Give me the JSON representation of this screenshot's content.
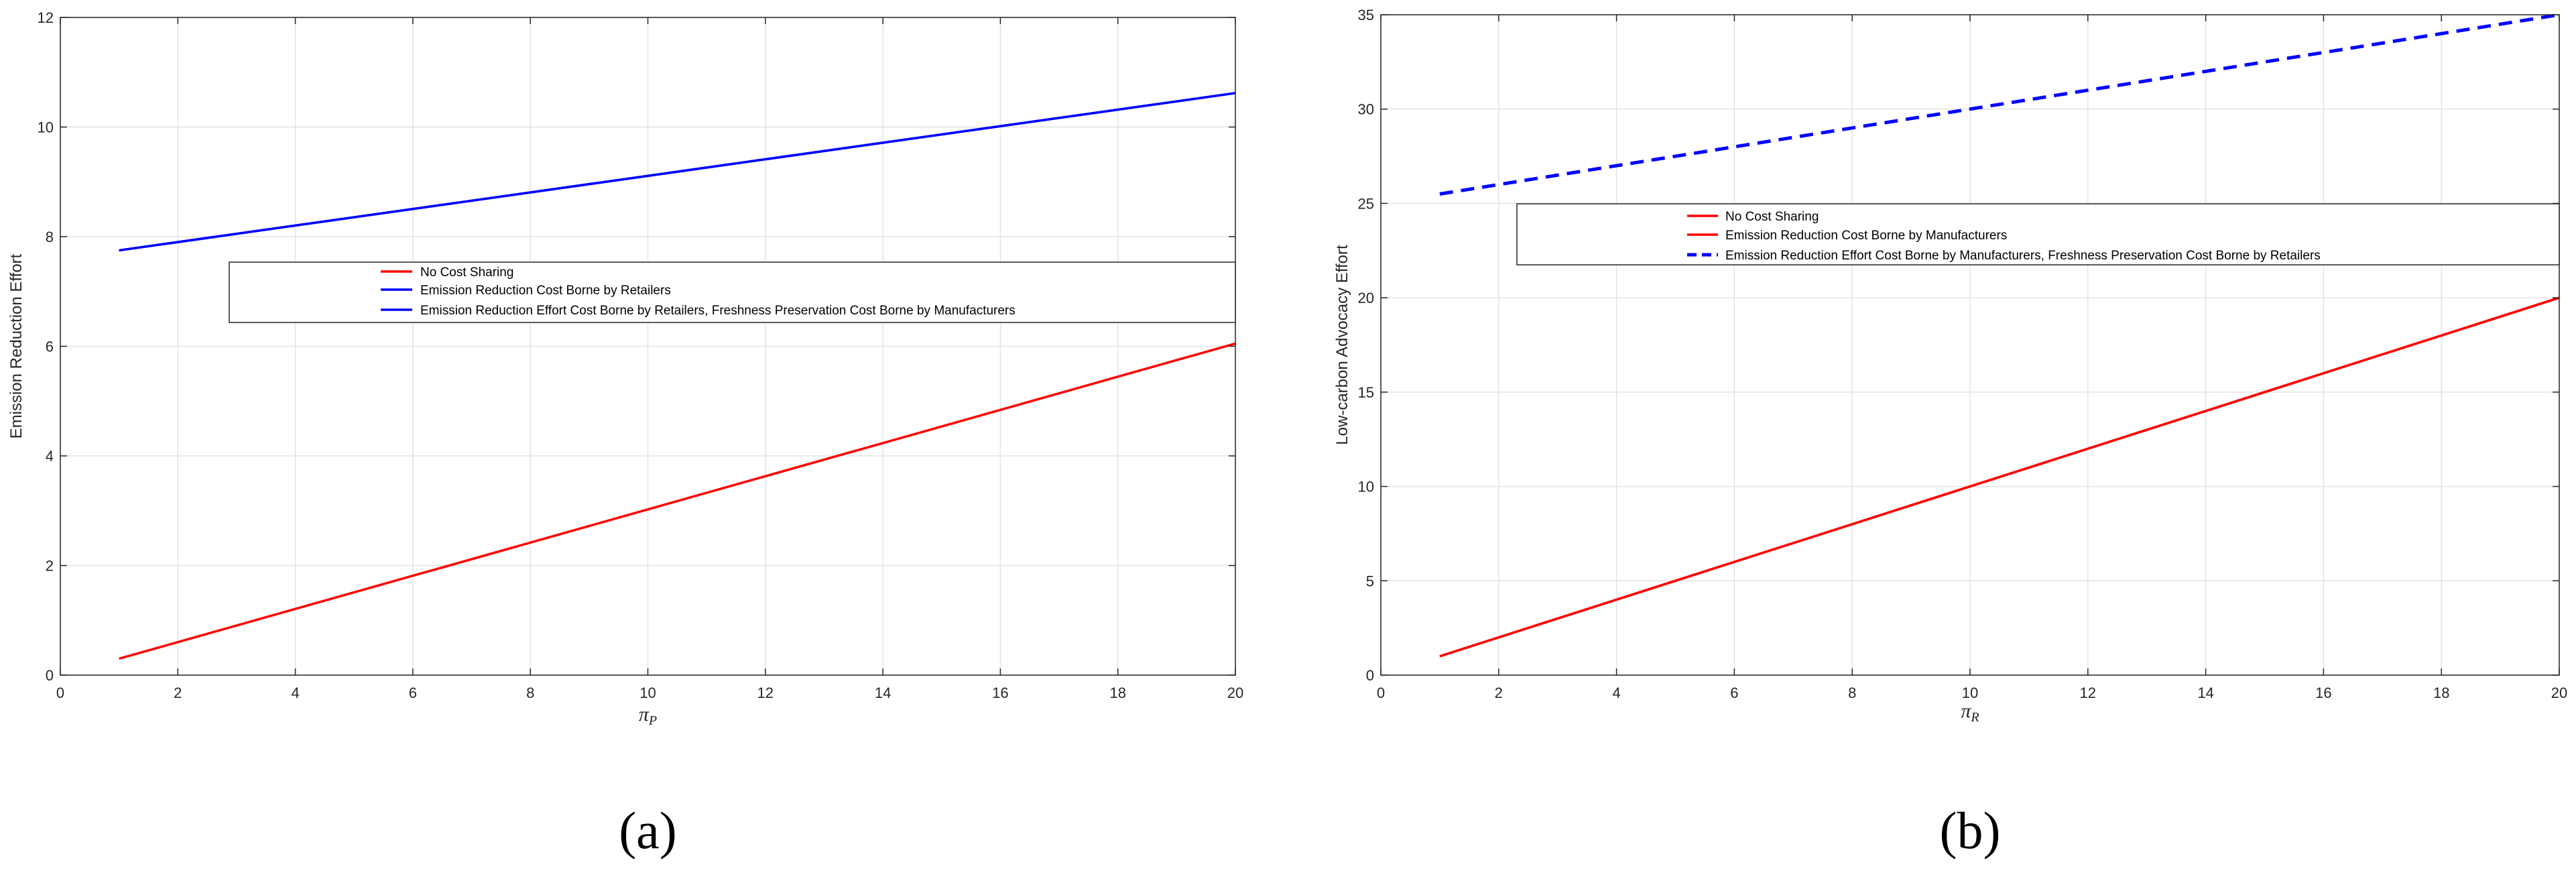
{
  "chart_data": [
    {
      "type": "line",
      "caption": "(a)",
      "ylabel": "Emission Reduction Effort",
      "xlabel": "πP",
      "xlabel_symbol": "π",
      "xlabel_subscript": "P",
      "xlim": [
        0,
        20
      ],
      "ylim": [
        0,
        12
      ],
      "xticks": [
        0,
        2,
        4,
        6,
        8,
        10,
        12,
        14,
        16,
        18,
        20
      ],
      "yticks": [
        0,
        2,
        4,
        6,
        8,
        10,
        12
      ],
      "grid": true,
      "legend_position": "center",
      "series": [
        {
          "name": "No Cost Sharing",
          "color": "#ff0000",
          "dash": "solid",
          "x": [
            1,
            20
          ],
          "y": [
            0.3,
            6.05
          ]
        },
        {
          "name": "Emission Reduction Cost Borne by Retailers",
          "color": "#0000ff",
          "dash": "solid",
          "x": [
            1,
            20
          ],
          "y": [
            7.75,
            10.62
          ]
        },
        {
          "name": "Emission Reduction Effort Cost Borne by Retailers, Freshness Preservation Cost Borne by Manufacturers",
          "color": "#0000ff",
          "dash": "solid",
          "x": [
            1,
            20
          ],
          "y": [
            7.75,
            10.62
          ]
        }
      ]
    },
    {
      "type": "line",
      "caption": "(b)",
      "ylabel": "Low-carbon Advocacy Effort",
      "xlabel": "πR",
      "xlabel_symbol": "π",
      "xlabel_subscript": "R",
      "xlim": [
        0,
        20
      ],
      "ylim": [
        0,
        35
      ],
      "xticks": [
        0,
        2,
        4,
        6,
        8,
        10,
        12,
        14,
        16,
        18,
        20
      ],
      "yticks": [
        0,
        5,
        10,
        15,
        20,
        25,
        30,
        35
      ],
      "grid": true,
      "legend_position": "center",
      "series": [
        {
          "name": "No Cost Sharing",
          "color": "#ff0000",
          "dash": "solid",
          "x": [
            1,
            20
          ],
          "y": [
            1,
            20
          ]
        },
        {
          "name": "Emission Reduction Cost Borne by Manufacturers",
          "color": "#ff0000",
          "dash": "solid",
          "x": [
            1,
            20
          ],
          "y": [
            1,
            20
          ]
        },
        {
          "name": "Emission Reduction Effort Cost Borne by Manufacturers, Freshness Preservation Cost Borne by Retailers",
          "color": "#0000ff",
          "dash": "dashed",
          "x": [
            1,
            20
          ],
          "y": [
            25.5,
            35
          ]
        }
      ]
    }
  ]
}
